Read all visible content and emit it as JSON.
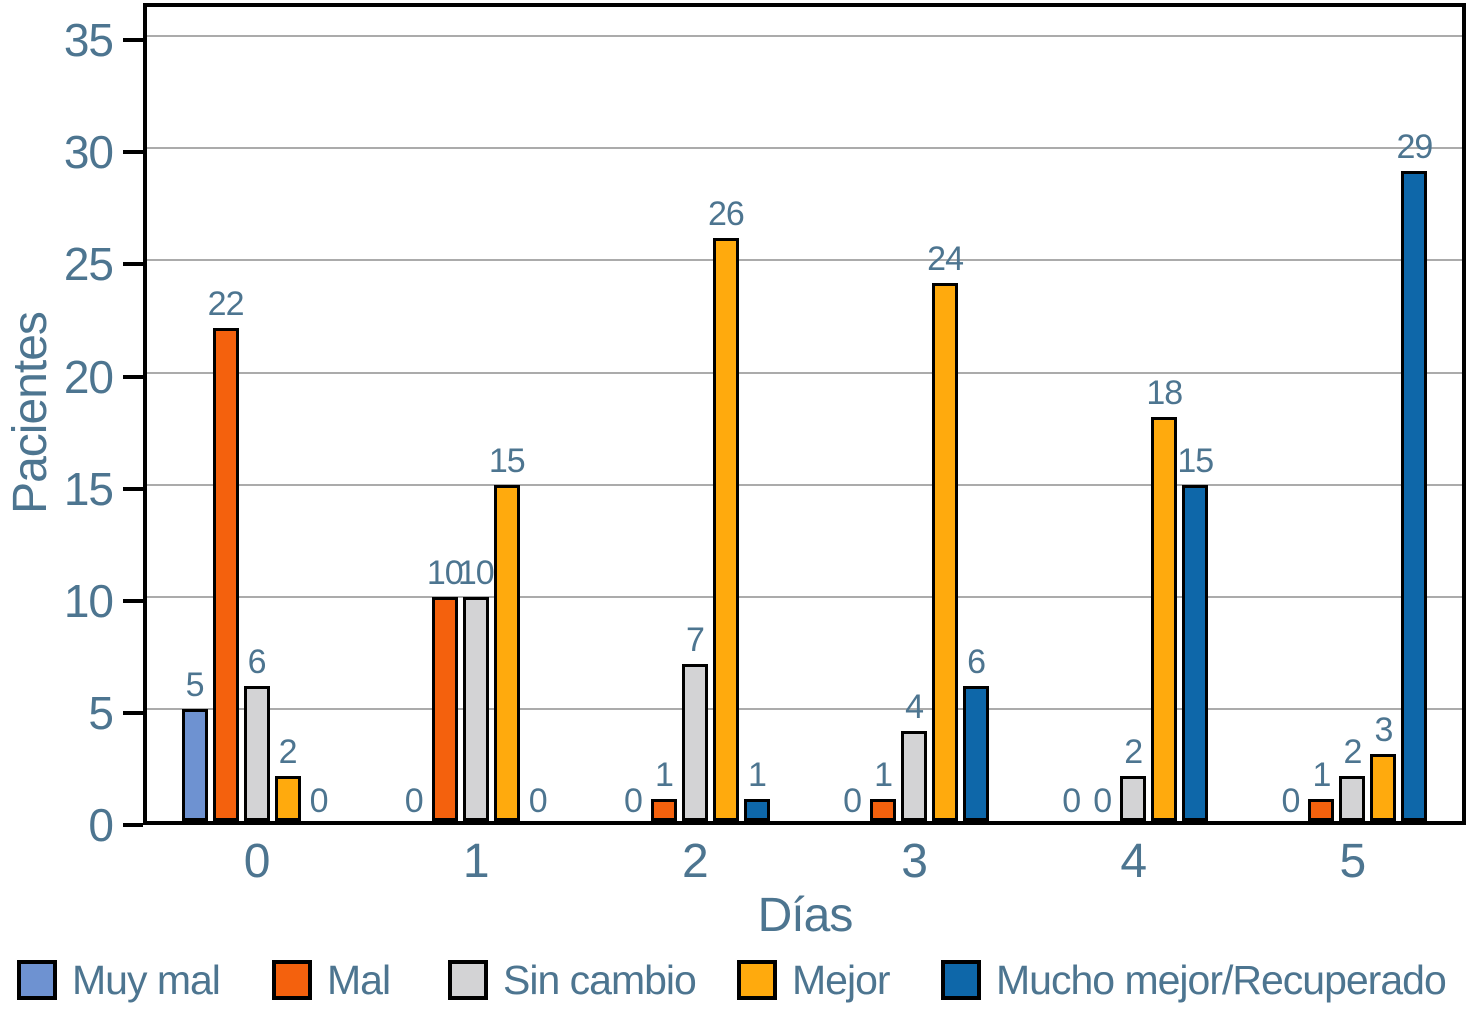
{
  "chart_data": {
    "type": "bar",
    "title": "",
    "xlabel": "Días",
    "ylabel": "Pacientes",
    "categories": [
      "0",
      "1",
      "2",
      "3",
      "4",
      "5"
    ],
    "series": [
      {
        "name": "Muy mal",
        "color": "#6E92D1",
        "values": [
          5,
          0,
          0,
          0,
          0,
          0
        ]
      },
      {
        "name": "Mal",
        "color": "#F4610D",
        "values": [
          22,
          10,
          1,
          1,
          0,
          1
        ]
      },
      {
        "name": "Sin cambio",
        "color": "#D3D3D5",
        "values": [
          6,
          10,
          7,
          4,
          2,
          2
        ]
      },
      {
        "name": "Mejor",
        "color": "#FFAA0D",
        "values": [
          2,
          15,
          26,
          24,
          18,
          3
        ]
      },
      {
        "name": "Mucho mejor/Recuperado",
        "color": "#0E67A9",
        "values": [
          0,
          0,
          1,
          6,
          15,
          29
        ]
      }
    ],
    "yticks": [
      0,
      5,
      10,
      15,
      20,
      25,
      30,
      35
    ],
    "ylim": [
      0,
      36.3
    ],
    "grid": true,
    "bar_labels": true,
    "legend_position": "bottom"
  },
  "styles": {
    "text_color": "#4D7590",
    "grid_color": "#ABABAB",
    "axis_color": "#000000",
    "bar_border_color": "#000000",
    "background": "#FFFFFF"
  }
}
